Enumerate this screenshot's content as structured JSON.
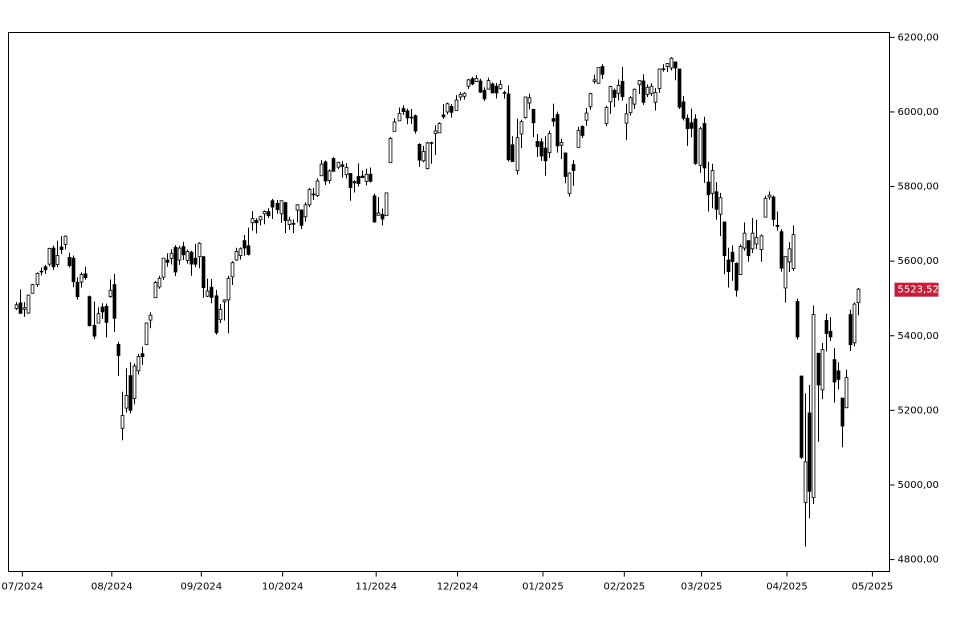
{
  "chart_data": {
    "type": "candlestick",
    "up_color": "#ffffff",
    "down_color": "#000000",
    "edge_color": "#000000",
    "last_price": {
      "value": 5523.52,
      "label": "5523,52",
      "color": "#c41e3a"
    },
    "ylim": [
      4768,
      6213
    ],
    "yticks": [
      {
        "value": 4800,
        "label": "4800,00"
      },
      {
        "value": 5000,
        "label": "5000,00"
      },
      {
        "value": 5200,
        "label": "5200,00"
      },
      {
        "value": 5400,
        "label": "5400,00"
      },
      {
        "value": 5600,
        "label": "5600,00"
      },
      {
        "value": 5800,
        "label": "5800,00"
      },
      {
        "value": 6000,
        "label": "6000,00"
      },
      {
        "value": 6200,
        "label": "6200,00"
      }
    ],
    "xlim": [
      -1.9,
      214.7
    ],
    "xticks": [
      {
        "value": 1.5,
        "label": "07/2024"
      },
      {
        "value": 23.5,
        "label": "08/2024"
      },
      {
        "value": 45.5,
        "label": "09/2024"
      },
      {
        "value": 65.5,
        "label": "10/2024"
      },
      {
        "value": 88.5,
        "label": "11/2024"
      },
      {
        "value": 108.5,
        "label": "12/2024"
      },
      {
        "value": 129.5,
        "label": "01/2025"
      },
      {
        "value": 149.5,
        "label": "02/2025"
      },
      {
        "value": 168.5,
        "label": "03/2025"
      },
      {
        "value": 189.5,
        "label": "04/2025"
      },
      {
        "value": 210.5,
        "label": "05/2025"
      }
    ],
    "open": [
      5473,
      5488,
      5471,
      5461,
      5514,
      5537,
      5572,
      5585,
      5592,
      5635,
      5591,
      5638,
      5645,
      5610,
      5608,
      5543,
      5544,
      5566,
      5505,
      5428,
      5434,
      5477,
      5479,
      5505,
      5537,
      5377,
      5152,
      5206,
      5293,
      5232,
      5306,
      5352,
      5376,
      5442,
      5502,
      5531,
      5557,
      5603,
      5607,
      5637,
      5603,
      5639,
      5602,
      5624,
      5608,
      5612,
      5612,
      5506,
      5530,
      5507,
      5443,
      5491,
      5496,
      5558,
      5603,
      5615,
      5655,
      5641,
      5703,
      5709,
      5711,
      5727,
      5733,
      5762,
      5755,
      5727,
      5757,
      5698,
      5701,
      5737,
      5737,
      5719,
      5751,
      5778,
      5776,
      5829,
      5866,
      5816,
      5875,
      5852,
      5858,
      5832,
      5835,
      5813,
      5827,
      5828,
      5814,
      5833,
      5775,
      5723,
      5725,
      5722,
      5864,
      5948,
      5976,
      6009,
      6003,
      5986,
      5990,
      5913,
      5869,
      5848,
      5918,
      5942,
      5944,
      5992,
      6000,
      6015,
      6004,
      6040,
      6042,
      6069,
      6089,
      6082,
      6083,
      6058,
      6061,
      6075,
      6069,
      6063,
      6052,
      6048,
      5912,
      5843,
      5941,
      5985,
      6024,
      6007,
      5921,
      5920,
      5903,
      5891,
      5982,
      5993,
      5911,
      5890,
      5782,
      5859,
      5905,
      5961,
      5978,
      6014,
      6082,
      6077,
      6122,
      5969,
      6027,
      6058,
      6050,
      6082,
      5970,
      5998,
      6021,
      6073,
      6083,
      6047,
      6050,
      6026,
      6063,
      6116,
      6122,
      6118,
      6134,
      6115,
      6027,
      5983,
      5971,
      5981,
      5857,
      5969,
      5812,
      5782,
      5786,
      5726,
      5705,
      5603,
      5624,
      5594,
      5564,
      5635,
      5655,
      5633,
      5646,
      5631,
      5718,
      5772,
      5772,
      5696,
      5679,
      5528,
      5598,
      5580,
      5492,
      5292,
      4953,
      5193,
      4966,
      5353,
      5255,
      5441,
      5412,
      5336,
      5306,
      5233,
      5207,
      5457,
      5381,
      5489
    ],
    "high": [
      5490,
      5524,
      5490,
      5510,
      5539,
      5570,
      5583,
      5590,
      5636,
      5642,
      5655,
      5667,
      5669,
      5623,
      5615,
      5557,
      5570,
      5585,
      5508,
      5492,
      5476,
      5487,
      5486,
      5551,
      5566,
      5384,
      5250,
      5313,
      5329,
      5326,
      5351,
      5371,
      5436,
      5463,
      5547,
      5561,
      5608,
      5621,
      5632,
      5643,
      5641,
      5652,
      5631,
      5628,
      5646,
      5651,
      5614,
      5553,
      5552,
      5523,
      5485,
      5498,
      5561,
      5600,
      5636,
      5637,
      5670,
      5690,
      5734,
      5715,
      5722,
      5736,
      5742,
      5767,
      5764,
      5763,
      5758,
      5719,
      5712,
      5753,
      5739,
      5758,
      5796,
      5796,
      5822,
      5871,
      5870,
      5846,
      5879,
      5866,
      5869,
      5863,
      5835,
      5817,
      5862,
      5843,
      5848,
      5851,
      5781,
      5772,
      5741,
      5784,
      5933,
      5983,
      6012,
      6018,
      6009,
      6008,
      5993,
      5916,
      5909,
      5920,
      5920,
      5964,
      5972,
      6021,
      6025,
      6021,
      6045,
      6053,
      6053,
      6089,
      6094,
      6099,
      6089,
      6066,
      6092,
      6079,
      6078,
      6085,
      6057,
      6071,
      5935,
      5982,
      5979,
      6040,
      6049,
      6007,
      5941,
      5929,
      5935,
      5950,
      6022,
      6001,
      5928,
      5891,
      5838,
      5871,
      5960,
      5964,
      6011,
      6051,
      6100,
      6119,
      6128,
      6017,
      6070,
      6063,
      6087,
      6121,
      6022,
      6042,
      6063,
      6084,
      6101,
      6074,
      6077,
      6064,
      6116,
      6128,
      6130,
      6147,
      6134,
      6115,
      6043,
      5993,
      6009,
      5994,
      5960,
      5987,
      5866,
      5861,
      5812,
      5783,
      5706,
      5636,
      5642,
      5597,
      5645,
      5704,
      5656,
      5716,
      5711,
      5671,
      5775,
      5787,
      5776,
      5733,
      5686,
      5613,
      5651,
      5696,
      5500,
      5293,
      5246,
      5268,
      5481,
      5353,
      5381,
      5459,
      5450,
      5367,
      5329,
      5233,
      5309,
      5470,
      5489,
      5528
    ],
    "low": [
      5469,
      5460,
      5451,
      5459,
      5513,
      5531,
      5562,
      5566,
      5586,
      5576,
      5584,
      5619,
      5632,
      5583,
      5530,
      5497,
      5529,
      5550,
      5425,
      5391,
      5433,
      5445,
      5396,
      5502,
      5410,
      5292,
      5120,
      5194,
      5192,
      5216,
      5296,
      5322,
      5376,
      5420,
      5501,
      5526,
      5550,
      5585,
      5591,
      5560,
      5590,
      5603,
      5593,
      5561,
      5584,
      5581,
      5502,
      5504,
      5487,
      5403,
      5434,
      5441,
      5406,
      5536,
      5601,
      5604,
      5614,
      5615,
      5682,
      5674,
      5696,
      5699,
      5716,
      5713,
      5727,
      5703,
      5675,
      5684,
      5675,
      5704,
      5686,
      5706,
      5745,
      5764,
      5772,
      5829,
      5804,
      5808,
      5840,
      5847,
      5824,
      5822,
      5762,
      5784,
      5800,
      5823,
      5803,
      5811,
      5703,
      5723,
      5696,
      5722,
      5864,
      5948,
      5976,
      5992,
      5967,
      5968,
      5942,
      5853,
      5865,
      5846,
      5861,
      5885,
      5944,
      5981,
      5993,
      5985,
      6004,
      6031,
      6033,
      6062,
      6072,
      6080,
      6051,
      6029,
      6060,
      6051,
      6036,
      6060,
      6036,
      5867,
      5866,
      5832,
      5903,
      5982,
      6007,
      5933,
      5879,
      5869,
      5829,
      5877,
      5961,
      5891,
      5874,
      5809,
      5773,
      5802,
      5905,
      5930,
      5963,
      6006,
      6076,
      6075,
      6088,
      5962,
      5995,
      6013,
      6031,
      6030,
      5924,
      5990,
      6008,
      6048,
      6019,
      6040,
      6043,
      6004,
      6051,
      6108,
      6107,
      6111,
      6085,
      6008,
      5977,
      5909,
      5932,
      5858,
      5837,
      5810,
      5733,
      5742,
      5711,
      5667,
      5565,
      5529,
      5547,
      5505,
      5564,
      5628,
      5598,
      5622,
      5633,
      5598,
      5718,
      5765,
      5694,
      5682,
      5572,
      5489,
      5571,
      5574,
      5390,
      5070,
      4835,
      4911,
      4949,
      5116,
      5230,
      5358,
      5386,
      5221,
      5256,
      5101,
      5207,
      5359,
      5372,
      5455
    ],
    "close": [
      5483,
      5460,
      5475,
      5509,
      5537,
      5567,
      5573,
      5577,
      5634,
      5585,
      5615,
      5631,
      5667,
      5588,
      5545,
      5505,
      5564,
      5556,
      5427,
      5399,
      5459,
      5464,
      5436,
      5522,
      5447,
      5347,
      5186,
      5240,
      5200,
      5319,
      5344,
      5344,
      5434,
      5455,
      5543,
      5554,
      5608,
      5597,
      5621,
      5571,
      5635,
      5617,
      5626,
      5592,
      5592,
      5648,
      5529,
      5520,
      5503,
      5408,
      5471,
      5496,
      5554,
      5596,
      5626,
      5633,
      5635,
      5618,
      5714,
      5703,
      5719,
      5733,
      5722,
      5745,
      5738,
      5762,
      5709,
      5710,
      5700,
      5751,
      5696,
      5751,
      5792,
      5780,
      5815,
      5860,
      5815,
      5842,
      5841,
      5865,
      5854,
      5851,
      5797,
      5810,
      5808,
      5824,
      5833,
      5814,
      5705,
      5729,
      5713,
      5783,
      5929,
      5973,
      5996,
      6001,
      5984,
      5985,
      5949,
      5871,
      5894,
      5917,
      5917,
      5949,
      5969,
      5987,
      6022,
      5999,
      6032,
      6047,
      6050,
      6086,
      6075,
      6090,
      6053,
      6035,
      6084,
      6051,
      6051,
      6074,
      6051,
      5872,
      5867,
      5931,
      5974,
      6040,
      6038,
      5971,
      5907,
      5882,
      5869,
      5942,
      5975,
      5909,
      5918,
      5827,
      5836,
      5843,
      5950,
      5937,
      5997,
      6049,
      6086,
      6119,
      6101,
      6012,
      6068,
      6039,
      6071,
      6041,
      5995,
      6038,
      6061,
      6084,
      6026,
      6066,
      6069,
      6052,
      6115,
      6115,
      6130,
      6144,
      6118,
      6013,
      5983,
      5955,
      5956,
      5862,
      5955,
      5850,
      5778,
      5843,
      5739,
      5770,
      5615,
      5572,
      5599,
      5522,
      5639,
      5675,
      5615,
      5675,
      5663,
      5668,
      5768,
      5777,
      5712,
      5693,
      5581,
      5612,
      5633,
      5671,
      5397,
      5074,
      5062,
      4983,
      5457,
      5268,
      5363,
      5406,
      5397,
      5276,
      5283,
      5158,
      5288,
      5376,
      5485,
      5525
    ]
  }
}
